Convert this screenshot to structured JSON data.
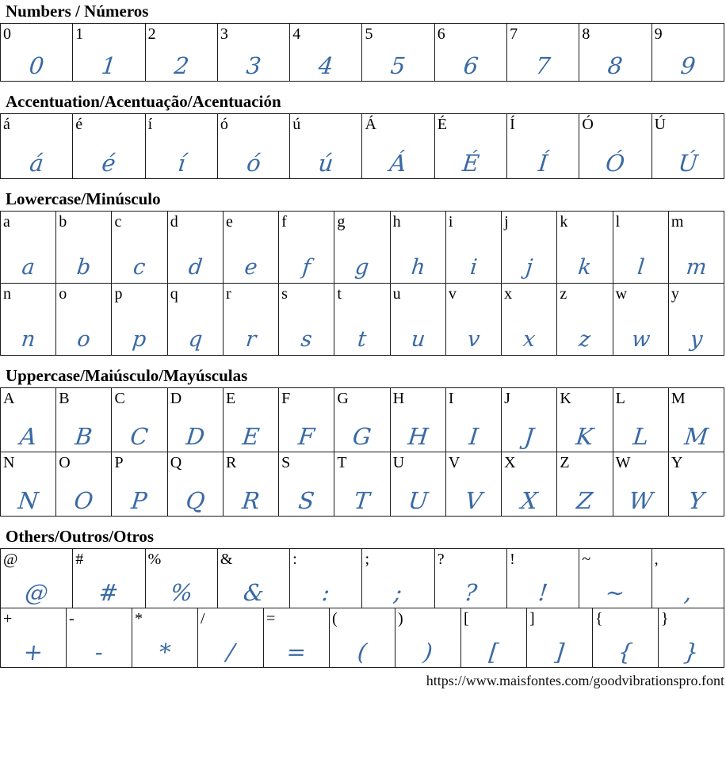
{
  "page": {
    "footer_url": "https://www.maisfontes.com/goodvibrationspro.font"
  },
  "colors": {
    "glyph_blue": "#3a6aa4",
    "label_black": "#000000",
    "border": "#1c1c1c",
    "background": "#ffffff"
  },
  "sections": [
    {
      "id": "numbers",
      "title": "Numbers / Números",
      "tables": [
        {
          "rows": [
            [
              "0",
              "1",
              "2",
              "3",
              "4",
              "5",
              "6",
              "7",
              "8",
              "9"
            ]
          ]
        }
      ]
    },
    {
      "id": "accentuation",
      "title": "Accentuation/Acentuação/Acentuación",
      "tables": [
        {
          "rows": [
            [
              "á",
              "é",
              "í",
              "ó",
              "ú",
              "Á",
              "É",
              "Í",
              "Ó",
              "Ú"
            ]
          ]
        }
      ]
    },
    {
      "id": "lowercase",
      "title": "Lowercase/Minúsculo",
      "tables": [
        {
          "rows": [
            [
              "a",
              "b",
              "c",
              "d",
              "e",
              "f",
              "g",
              "h",
              "i",
              "j",
              "k",
              "l",
              "m"
            ],
            [
              "n",
              "o",
              "p",
              "q",
              "r",
              "s",
              "t",
              "u",
              "v",
              "x",
              "z",
              "w",
              "y"
            ]
          ]
        }
      ]
    },
    {
      "id": "uppercase",
      "title": "Uppercase/Maiúsculo/Mayúsculas",
      "tables": [
        {
          "rows": [
            [
              "A",
              "B",
              "C",
              "D",
              "E",
              "F",
              "G",
              "H",
              "I",
              "J",
              "K",
              "L",
              "M"
            ],
            [
              "N",
              "O",
              "P",
              "Q",
              "R",
              "S",
              "T",
              "U",
              "V",
              "X",
              "Z",
              "W",
              "Y"
            ]
          ]
        }
      ]
    },
    {
      "id": "others",
      "title": "Others/Outros/Otros",
      "tables": [
        {
          "rows": [
            [
              "@",
              "#",
              "%",
              "&",
              ":",
              ";",
              "?",
              "!",
              "~",
              ","
            ]
          ]
        },
        {
          "rows": [
            [
              "+",
              "-",
              "*",
              "/",
              "=",
              "(",
              ")",
              "[",
              "]",
              "{",
              "}"
            ]
          ]
        }
      ]
    }
  ]
}
